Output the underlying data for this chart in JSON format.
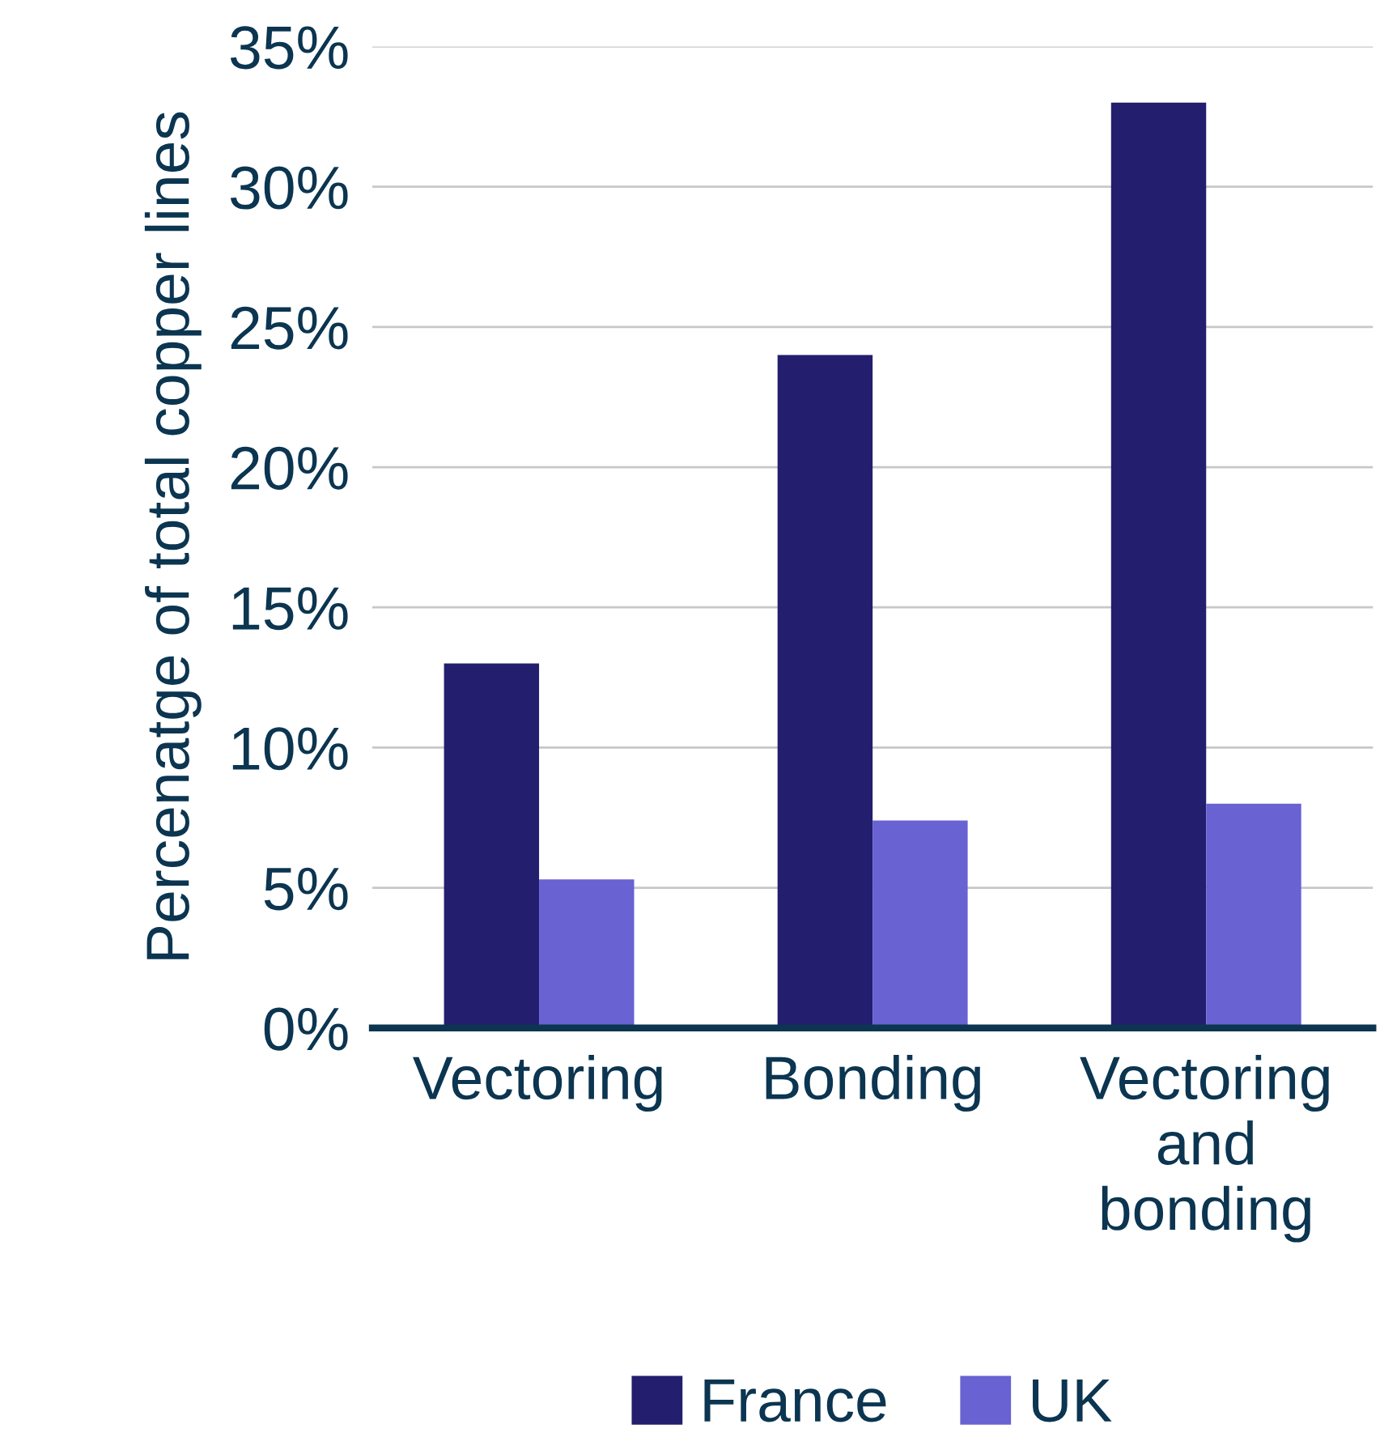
{
  "chart_data": {
    "type": "bar",
    "ylabel": "Percenatge of total copper lines",
    "categories": [
      "Vectoring",
      "Bonding",
      "Vectoring\nand\nbonding"
    ],
    "series": [
      {
        "name": "France",
        "color": "#231e6e",
        "values": [
          13.0,
          24.0,
          33.0
        ]
      },
      {
        "name": "UK",
        "color": "#6862d2",
        "values": [
          5.3,
          7.4,
          8.0
        ]
      }
    ],
    "ylim": [
      0,
      35
    ],
    "yticks": [
      {
        "value": 0,
        "label": "0%"
      },
      {
        "value": 5,
        "label": "5%"
      },
      {
        "value": 10,
        "label": "10%"
      },
      {
        "value": 15,
        "label": "15%"
      },
      {
        "value": 20,
        "label": "20%"
      },
      {
        "value": 25,
        "label": "25%"
      },
      {
        "value": 30,
        "label": "30%"
      },
      {
        "value": 35,
        "label": "35%"
      }
    ],
    "grid": "y",
    "legend": "bottom"
  }
}
